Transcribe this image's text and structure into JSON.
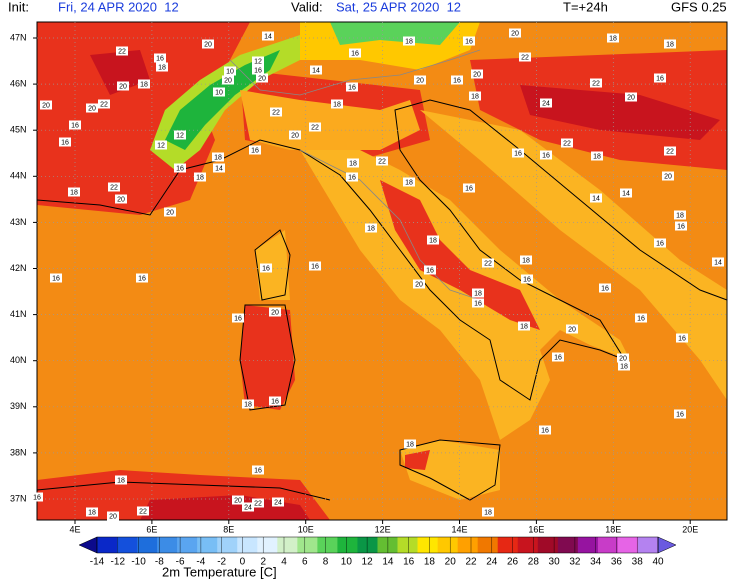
{
  "header": {
    "init_label": "Init:",
    "init_value": "Fri, 24 APR 2020  12",
    "valid_label": "Valid:",
    "valid_value": "Sat, 25 APR 2020  12",
    "forecast_step": "T=+24h",
    "model": "GFS 0.25"
  },
  "axes": {
    "lat_labels": [
      "47N",
      "46N",
      "45N",
      "44N",
      "43N",
      "42N",
      "41N",
      "40N",
      "39N",
      "38N",
      "37N"
    ],
    "lon_labels": [
      "4E",
      "6E",
      "8E",
      "10E",
      "12E",
      "14E",
      "16E",
      "18E",
      "20E"
    ]
  },
  "colorbar": {
    "title": "2m Temperature [C]",
    "ticks": [
      -14,
      -12,
      -10,
      -8,
      -6,
      -4,
      -2,
      0,
      2,
      4,
      6,
      8,
      10,
      12,
      14,
      16,
      18,
      20,
      22,
      24,
      26,
      28,
      30,
      32,
      34,
      36,
      38,
      40
    ],
    "colors": [
      "#0c0a8c",
      "#0a28c8",
      "#1450dc",
      "#1e6edc",
      "#3c8ce6",
      "#5aa5f0",
      "#78bef5",
      "#a0d2fa",
      "#c8e6ff",
      "#e1f2ff",
      "#d2f0c8",
      "#a0e68c",
      "#5ad25a",
      "#1eb43c",
      "#0a9646",
      "#64be32",
      "#b4dc28",
      "#ffe600",
      "#ffc800",
      "#ffa000",
      "#f07800",
      "#e62814",
      "#c8141e",
      "#a00a28",
      "#800a50",
      "#9614a0",
      "#c83cc8",
      "#e664e6",
      "#b482f0",
      "#6a5ae0"
    ]
  },
  "map_labels": [
    "22",
    "20",
    "14",
    "16",
    "18",
    "12",
    "16",
    "10",
    "20",
    "20",
    "20",
    "20",
    "22",
    "16",
    "18",
    "10",
    "20",
    "22",
    "22",
    "20",
    "12",
    "12",
    "16",
    "16",
    "18",
    "14",
    "16",
    "18",
    "18",
    "22",
    "20",
    "20",
    "18",
    "16",
    "22",
    "18",
    "16",
    "16",
    "16",
    "18",
    "14",
    "18",
    "16",
    "20",
    "22",
    "18",
    "18",
    "22",
    "16",
    "20",
    "24",
    "20",
    "16",
    "20",
    "18",
    "22",
    "16",
    "16",
    "18",
    "22",
    "20",
    "14",
    "14",
    "18",
    "16",
    "16",
    "14",
    "18",
    "18",
    "16",
    "22",
    "18",
    "16",
    "18",
    "16",
    "20",
    "16",
    "20",
    "16",
    "16",
    "18",
    "16",
    "20",
    "18",
    "16",
    "16",
    "16",
    "16",
    "20",
    "16",
    "18",
    "16",
    "18",
    "16",
    "16",
    "18",
    "16",
    "16",
    "18",
    "20",
    "22",
    "20",
    "24",
    "22",
    "24",
    "18"
  ]
}
